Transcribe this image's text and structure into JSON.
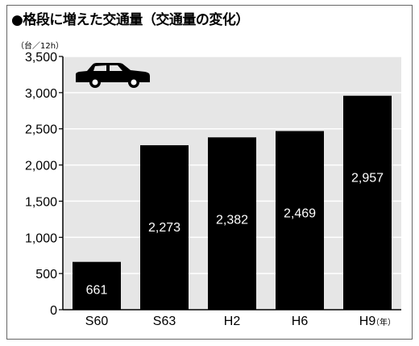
{
  "title": "●格段に増えた交通量（交通量の変化）",
  "icon": "car-icon",
  "colors": {
    "plot_bg": "#e6e6e6",
    "bar": "#000000",
    "grid": "#ffffff",
    "value_label": "#ffffff"
  },
  "chart_data": {
    "type": "bar",
    "title": "●格段に増えた交通量（交通量の変化）",
    "y_unit": "（台／12h）",
    "x_unit": "（年）",
    "categories": [
      "S60",
      "S63",
      "H2",
      "H6",
      "H9"
    ],
    "values": [
      661,
      2273,
      2382,
      2469,
      2957
    ],
    "value_labels": [
      "661",
      "2,273",
      "2,382",
      "2,469",
      "2,957"
    ],
    "ylim": [
      0,
      3500
    ],
    "y_ticks": [
      0,
      500,
      1000,
      1500,
      2000,
      2500,
      3000,
      3500
    ],
    "y_tick_labels": [
      "0",
      "500",
      "1,000",
      "1,500",
      "2,000",
      "2,500",
      "3,000",
      "3,500"
    ],
    "grid": true,
    "legend": "none"
  }
}
